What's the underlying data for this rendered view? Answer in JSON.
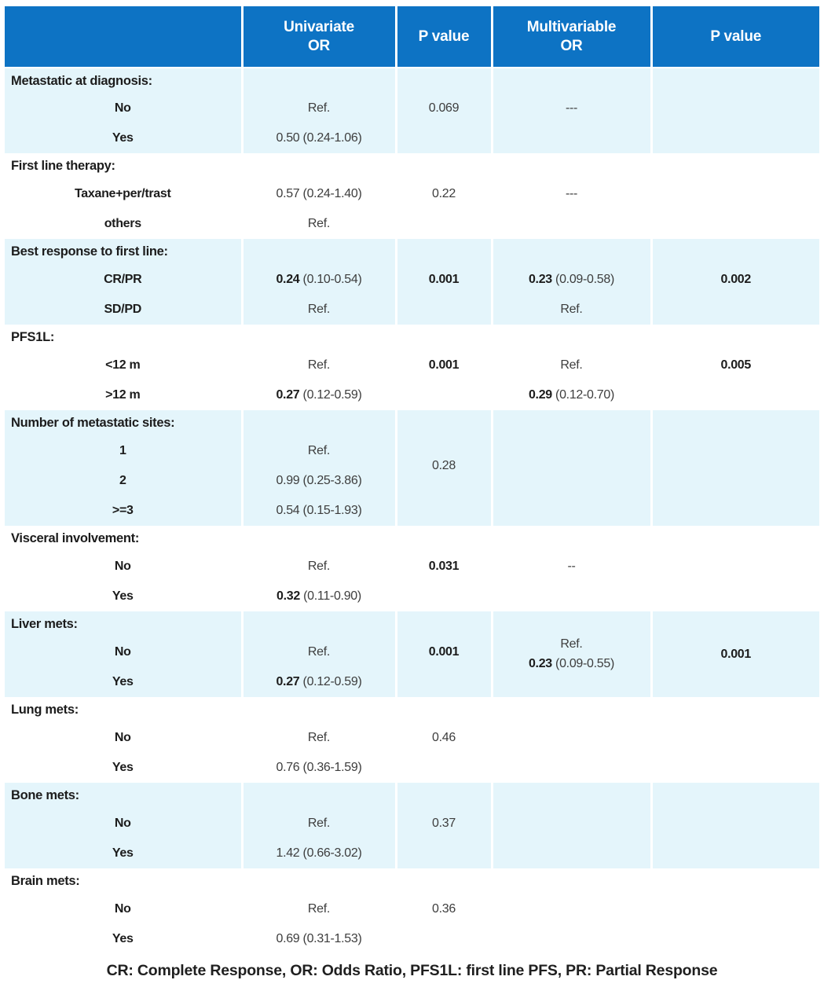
{
  "colors": {
    "header_bg": "#0d73c4",
    "band_bg": "#e4f5fb",
    "header_text": "#ffffff"
  },
  "header": {
    "variable": "",
    "uni_or": "Univariate\nOR",
    "p1": "P value",
    "multi_or": "Multivariable\nOR",
    "p2": "P value"
  },
  "groups": [
    {
      "label": "Metastatic at diagnosis:",
      "rows": [
        {
          "label": "No",
          "uni": "Ref.",
          "p1": "0.069",
          "multi": "---"
        },
        {
          "label": "Yes",
          "uni": "0.50 (0.24-1.06)"
        }
      ]
    },
    {
      "label": "First line therapy:",
      "rows": [
        {
          "label": "Taxane+per/trast",
          "uni": "0.57 (0.24-1.40)",
          "p1": "0.22",
          "multi": "---"
        },
        {
          "label": "others",
          "uni": "Ref."
        }
      ]
    },
    {
      "label": "Best response to first line:",
      "rows": [
        {
          "label": "CR/PR",
          "uni_b": "0.24",
          "uni_r": " (0.10-0.54)",
          "p1": "0.001",
          "multi_b": "0.23",
          "multi_r": " (0.09-0.58)",
          "p2": "0.002"
        },
        {
          "label": "SD/PD",
          "uni": "Ref.",
          "multi": "Ref."
        }
      ]
    },
    {
      "label": "PFS1L:",
      "rows": [
        {
          "label": "<12 m",
          "uni": "Ref.",
          "p1": "0.001",
          "multi": "Ref.",
          "p2": "0.005"
        },
        {
          "label": ">12 m",
          "uni_b": "0.27",
          "uni_r": " (0.12-0.59)",
          "multi_b": "0.29",
          "multi_r": " (0.12-0.70)"
        }
      ]
    },
    {
      "label": "Number of metastatic sites:",
      "rows": [
        {
          "label": "1",
          "uni": "Ref.",
          "p1": "0.28"
        },
        {
          "label": "2",
          "uni": "0.99 (0.25-3.86)"
        },
        {
          "label": ">=3",
          "uni": "0.54 (0.15-1.93)"
        }
      ]
    },
    {
      "label": "Visceral involvement:",
      "rows": [
        {
          "label": "No",
          "uni": "Ref.",
          "p1": "0.031",
          "multi": "--"
        },
        {
          "label": "Yes",
          "uni_b": "0.32",
          "uni_r": " (0.11-0.90)"
        }
      ]
    },
    {
      "label": "Liver mets:",
      "multi_ref": "Ref.",
      "multi_b": "0.23",
      "multi_r": " (0.09-0.55)",
      "p2": "0.001",
      "rows": [
        {
          "label": "No",
          "uni": "Ref.",
          "p1": "0.001"
        },
        {
          "label": "Yes",
          "uni_b": "0.27",
          "uni_r": " (0.12-0.59)"
        }
      ]
    },
    {
      "label": "Lung mets:",
      "rows": [
        {
          "label": "No",
          "uni": "Ref.",
          "p1": "0.46"
        },
        {
          "label": "Yes",
          "uni": "0.76 (0.36-1.59)"
        }
      ]
    },
    {
      "label": "Bone mets:",
      "rows": [
        {
          "label": "No",
          "uni": "Ref.",
          "p1": "0.37"
        },
        {
          "label": "Yes",
          "uni": "1.42 (0.66-3.02)"
        }
      ]
    },
    {
      "label": "Brain mets:",
      "rows": [
        {
          "label": "No",
          "uni": "Ref.",
          "p1": "0.36"
        },
        {
          "label": "Yes",
          "uni": "0.69 (0.31-1.53)"
        }
      ]
    }
  ],
  "footnote": "CR: Complete Response, OR: Odds Ratio, PFS1L: first line PFS, PR: Partial Response"
}
